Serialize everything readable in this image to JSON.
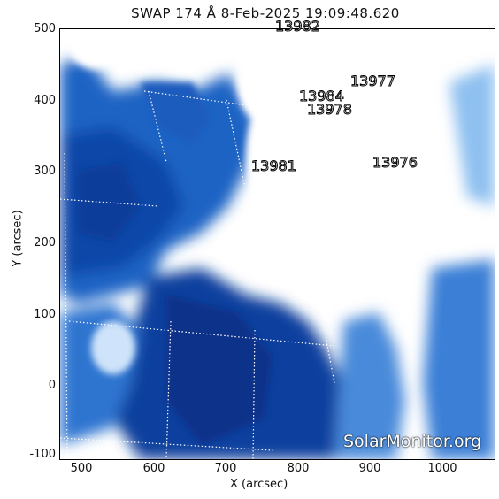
{
  "title": "SWAP 174 Å  8-Feb-2025 19:09:48.620",
  "axes": {
    "xlabel": "X (arcsec)",
    "ylabel": "Y (arcsec)",
    "x_ticks": [
      "500",
      "600",
      "700",
      "800",
      "900",
      "1000"
    ],
    "y_ticks": [
      "500",
      "400",
      "300",
      "200",
      "100",
      "0",
      "-100"
    ]
  },
  "active_regions": [
    {
      "id": "13982"
    },
    {
      "id": "13977"
    },
    {
      "id": "13984"
    },
    {
      "id": "13978"
    },
    {
      "id": "13981"
    },
    {
      "id": "13976"
    }
  ],
  "watermark": "SolarMonitor.org",
  "colors": {
    "deep_blue": "#0a3f9e",
    "mid_blue": "#2f74d0",
    "light_blue": "#8ec0f0",
    "saturated": "#ffffff"
  }
}
